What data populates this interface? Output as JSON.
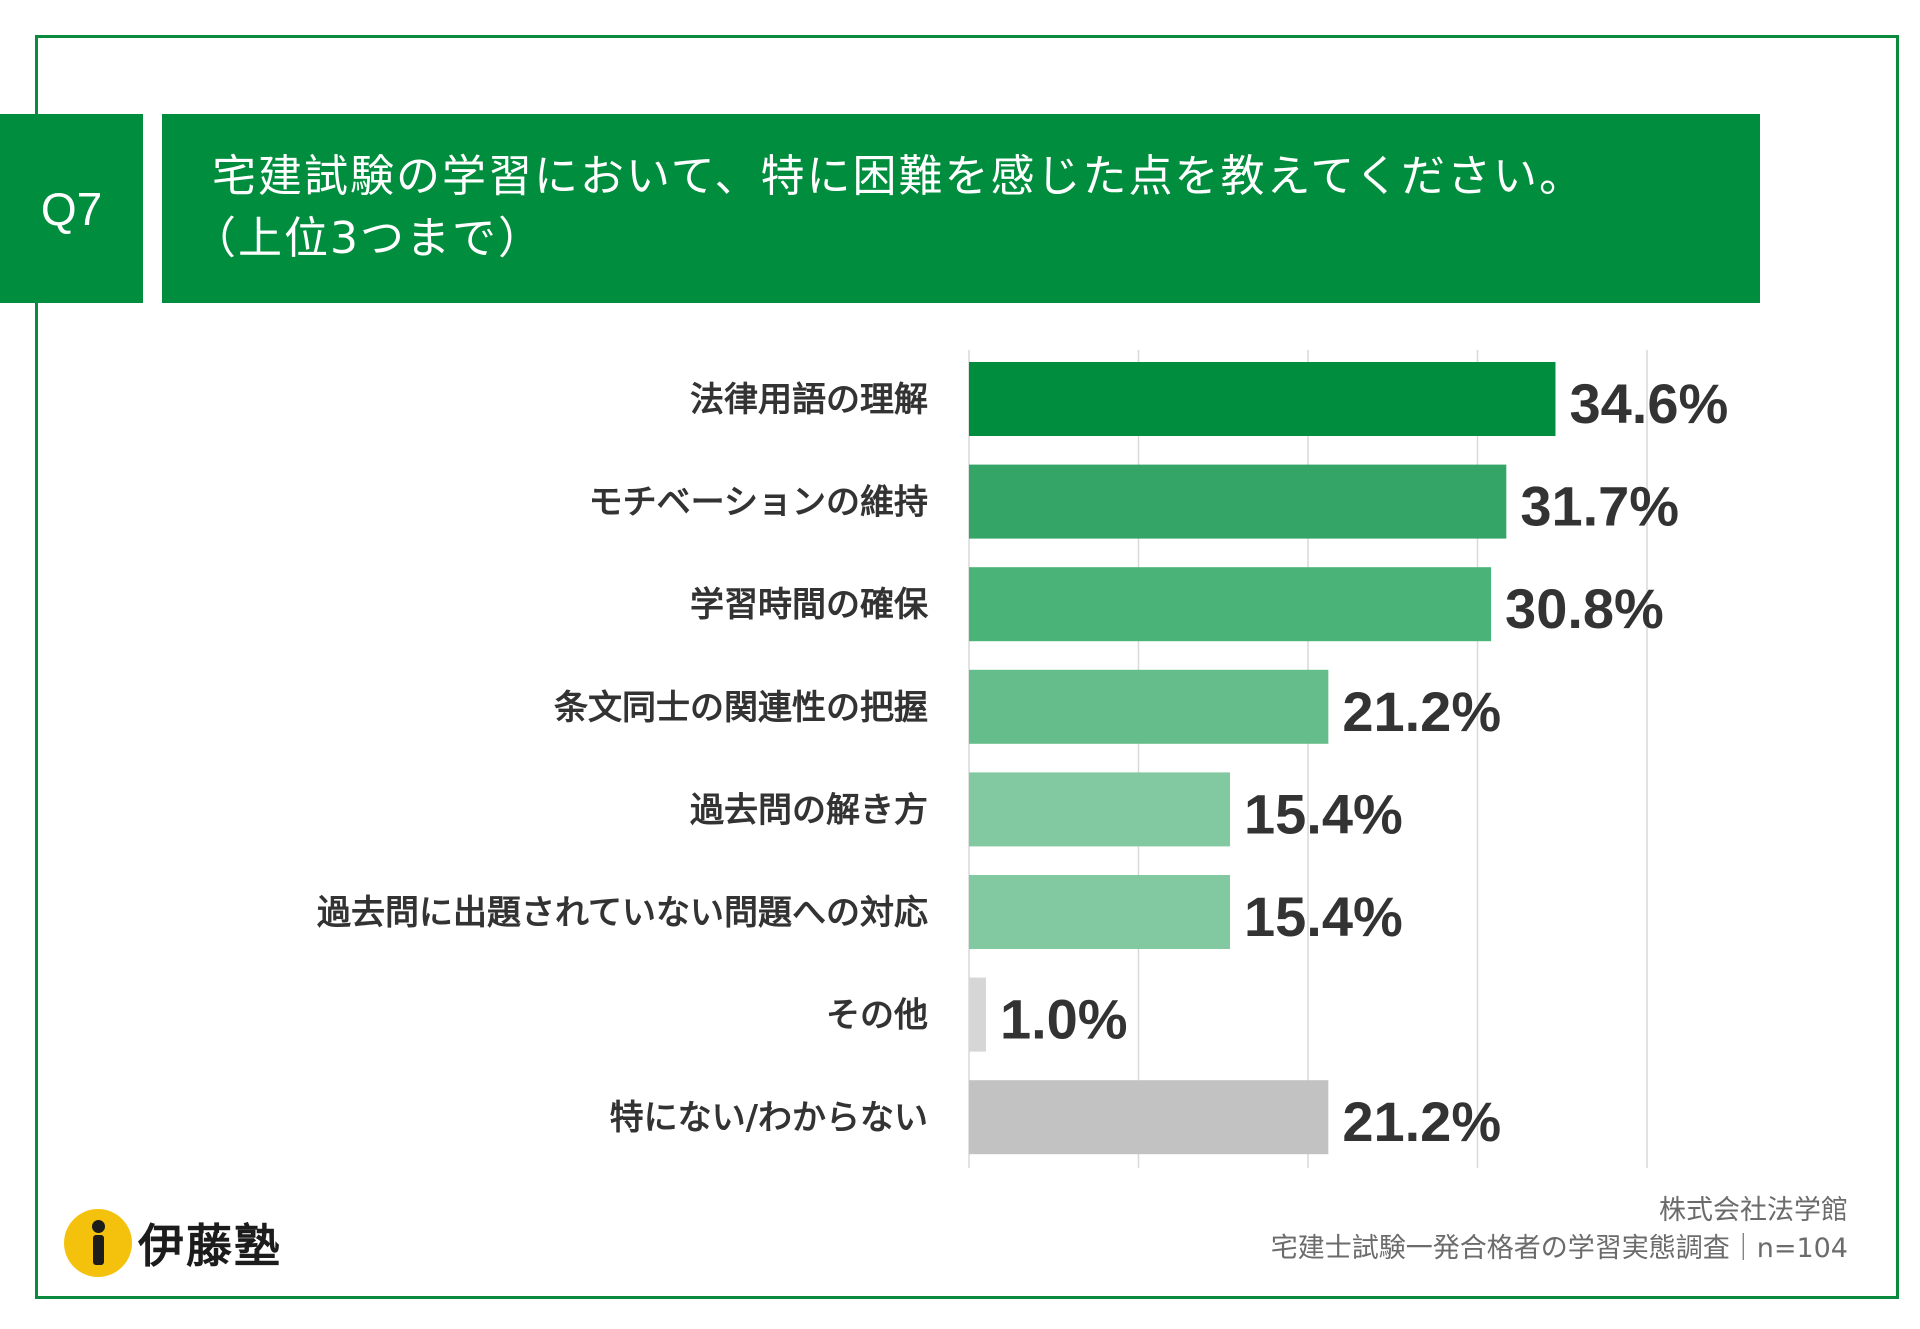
{
  "question": {
    "number": "Q7",
    "title_line1": "宅建試験の学習において、特に困難を感じた点を教えてください。",
    "title_line2": "（上位3つまで）"
  },
  "chart_data": {
    "type": "bar",
    "orientation": "horizontal",
    "categories": [
      "法律用語の理解",
      "モチベーションの維持",
      "学習時間の確保",
      "条文同士の関連性の把握",
      "過去問の解き方",
      "過去問に出題されていない問題への対応",
      "その他",
      "特にない/わからない"
    ],
    "values": [
      34.6,
      31.7,
      30.8,
      21.2,
      15.4,
      15.4,
      1.0,
      21.2
    ],
    "value_labels": [
      "34.6%",
      "31.7%",
      "30.8%",
      "21.2%",
      "15.4%",
      "15.4%",
      "1.0%",
      "21.2%"
    ],
    "bar_colors": [
      "#008d3d",
      "#34a567",
      "#4ab378",
      "#66bd8c",
      "#82c9a1",
      "#82c9a1",
      "#d6d6d6",
      "#c2c2c2"
    ],
    "xlim": [
      0,
      40
    ],
    "grid": true,
    "legend": "none"
  },
  "branding": {
    "logo_text": "伊藤塾",
    "logo_icon": "info-i-icon",
    "logo_color": "#f4c20d"
  },
  "source": {
    "company": "株式会社法学館",
    "survey": "宅建士試験一発合格者の学習実態調査｜n=104"
  },
  "colors": {
    "accent": "#008d3d",
    "border": "#0a8a3c"
  }
}
